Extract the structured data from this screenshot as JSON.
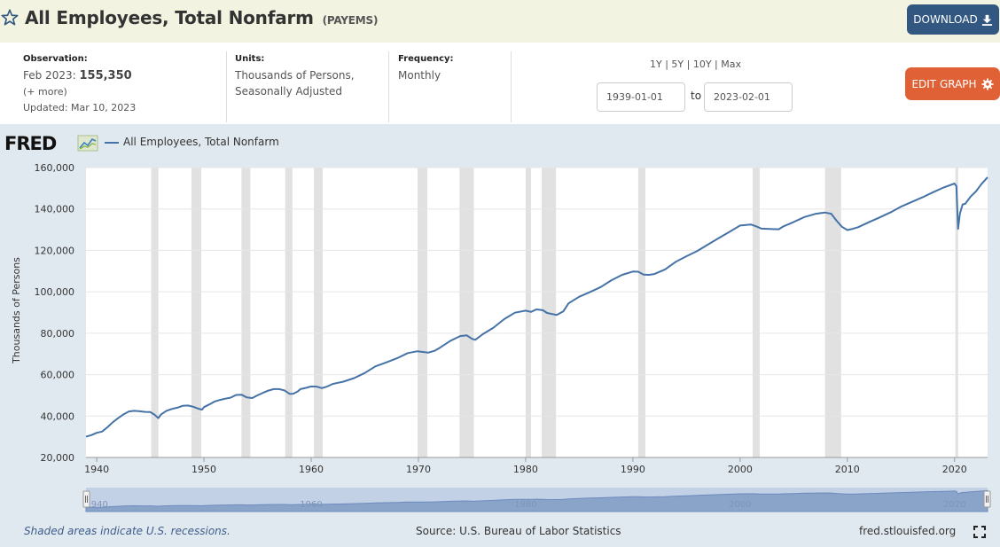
{
  "header": {
    "title": "All Employees, Total Nonfarm",
    "series_id": "(PAYEMS)",
    "download_label": "DOWNLOAD",
    "edit_graph_label": "EDIT GRAPH"
  },
  "meta": {
    "observation_label": "Observation:",
    "observation_date": "Feb 2023:",
    "observation_value": "155,350",
    "more_label": "(+ more)",
    "updated": "Updated: Mar 10, 2023",
    "units_label": "Units:",
    "units_line1": "Thousands of Persons,",
    "units_line2": "Seasonally Adjusted",
    "frequency_label": "Frequency:",
    "frequency_value": "Monthly"
  },
  "range": {
    "links": [
      "1Y",
      "5Y",
      "10Y",
      "Max"
    ],
    "start_date": "1939-01-01",
    "to_label": "to",
    "end_date": "2023-02-01"
  },
  "legend": {
    "logo_text": "FRED",
    "series_name": "All Employees, Total Nonfarm",
    "line_color": "#4572a7"
  },
  "footer": {
    "recession_note": "Shaded areas indicate U.S. recessions.",
    "source": "Source: U.S. Bureau of Labor Statistics",
    "url": "fred.stlouisfed.org"
  },
  "colors": {
    "title_bg": "#f3f3e1",
    "download_bg": "#325881",
    "edit_bg": "#e06135",
    "chart_bg": "#e1e9f0",
    "recession_fill": "#e1e1e1",
    "navigator_fill": "#8aa3c9"
  },
  "icons": [
    "star-icon",
    "download-icon",
    "gear-icon",
    "fred-chart-icon",
    "fullscreen-icon"
  ],
  "chart_data": {
    "type": "line",
    "title": "",
    "xlabel": "",
    "ylabel": "Thousands of Persons",
    "xlim": [
      1939.0,
      2023.08
    ],
    "ylim": [
      20000,
      160000
    ],
    "yticks": [
      20000,
      40000,
      60000,
      80000,
      100000,
      120000,
      140000,
      160000
    ],
    "ytick_labels": [
      "20,000",
      "40,000",
      "60,000",
      "80,000",
      "100,000",
      "120,000",
      "140,000",
      "160,000"
    ],
    "xticks": [
      1940,
      1950,
      1960,
      1970,
      1980,
      1990,
      2000,
      2010,
      2020
    ],
    "xtick_labels": [
      "1940",
      "1950",
      "1960",
      "1970",
      "1980",
      "1990",
      "2000",
      "2010",
      "2020"
    ],
    "navigator_labels": [
      "1940",
      "1960",
      "1980",
      "2000",
      "2020"
    ],
    "grid": "horizontal",
    "recessions": [
      [
        1945.08,
        1945.75
      ],
      [
        1948.83,
        1949.75
      ],
      [
        1953.5,
        1954.33
      ],
      [
        1957.58,
        1958.25
      ],
      [
        1960.25,
        1961.08
      ],
      [
        1969.92,
        1970.83
      ],
      [
        1973.83,
        1975.17
      ],
      [
        1980.0,
        1980.5
      ],
      [
        1981.5,
        1982.83
      ],
      [
        1990.5,
        1991.17
      ],
      [
        2001.17,
        2001.83
      ],
      [
        2007.92,
        2009.42
      ],
      [
        2020.08,
        2020.33
      ]
    ],
    "series": [
      {
        "name": "All Employees, Total Nonfarm",
        "x": [
          1939.0,
          1939.5,
          1940.0,
          1940.5,
          1941.0,
          1941.5,
          1942.0,
          1942.5,
          1943.0,
          1943.5,
          1944.0,
          1944.5,
          1945.0,
          1945.4,
          1945.75,
          1946.0,
          1946.5,
          1947.0,
          1947.5,
          1948.0,
          1948.5,
          1949.0,
          1949.5,
          1949.83,
          1950.0,
          1950.5,
          1951.0,
          1951.5,
          1952.0,
          1952.5,
          1953.0,
          1953.5,
          1954.0,
          1954.5,
          1955.0,
          1955.5,
          1956.0,
          1956.5,
          1957.0,
          1957.5,
          1958.0,
          1958.33,
          1958.75,
          1959.0,
          1959.5,
          1960.0,
          1960.5,
          1961.0,
          1961.5,
          1962.0,
          1963.0,
          1964.0,
          1965.0,
          1966.0,
          1967.0,
          1968.0,
          1969.0,
          1969.9,
          1970.5,
          1970.9,
          1971.5,
          1972.0,
          1973.0,
          1973.9,
          1974.5,
          1975.0,
          1975.3,
          1976.0,
          1977.0,
          1978.0,
          1979.0,
          1980.0,
          1980.5,
          1981.0,
          1981.6,
          1982.0,
          1982.9,
          1983.5,
          1984.0,
          1985.0,
          1986.0,
          1987.0,
          1988.0,
          1989.0,
          1990.0,
          1990.5,
          1991.0,
          1991.5,
          1992.0,
          1993.0,
          1994.0,
          1995.0,
          1996.0,
          1997.0,
          1998.0,
          1999.0,
          2000.0,
          2001.0,
          2001.5,
          2002.0,
          2003.0,
          2003.6,
          2004.0,
          2005.0,
          2006.0,
          2007.0,
          2007.9,
          2008.5,
          2009.0,
          2009.5,
          2010.0,
          2010.5,
          2011.0,
          2012.0,
          2013.0,
          2014.0,
          2015.0,
          2016.0,
          2017.0,
          2018.0,
          2019.0,
          2020.0,
          2020.17,
          2020.33,
          2020.5,
          2020.75,
          2021.0,
          2021.5,
          2022.0,
          2022.5,
          2023.08
        ],
        "values": [
          30000,
          30800,
          31900,
          32500,
          34600,
          37000,
          39000,
          40800,
          42200,
          42500,
          42300,
          42000,
          41900,
          40600,
          39000,
          40800,
          42500,
          43400,
          44000,
          44900,
          45100,
          44500,
          43500,
          43100,
          44300,
          45600,
          47000,
          47800,
          48400,
          48900,
          50200,
          50300,
          49000,
          48700,
          50000,
          51200,
          52300,
          53000,
          53000,
          52400,
          50700,
          50800,
          51900,
          53000,
          53600,
          54300,
          54200,
          53500,
          54300,
          55500,
          56600,
          58300,
          60800,
          64000,
          65900,
          67900,
          70400,
          71300,
          70900,
          70600,
          71500,
          73000,
          76400,
          78600,
          79000,
          77300,
          76800,
          79500,
          82700,
          86800,
          89900,
          90900,
          90300,
          91500,
          91100,
          89800,
          88800,
          90500,
          94400,
          97600,
          99900,
          102300,
          105600,
          108200,
          109800,
          109700,
          108300,
          108200,
          108600,
          110800,
          114500,
          117200,
          119700,
          122800,
          125900,
          128900,
          132000,
          132500,
          131600,
          130500,
          130300,
          130200,
          131500,
          133700,
          136100,
          137600,
          138300,
          137700,
          134300,
          131400,
          129800,
          130400,
          131200,
          133600,
          135900,
          138300,
          141100,
          143400,
          145600,
          148100,
          150400,
          152300,
          151000,
          130400,
          137800,
          142200,
          142500,
          146000,
          148500,
          152000,
          155350
        ]
      }
    ]
  }
}
